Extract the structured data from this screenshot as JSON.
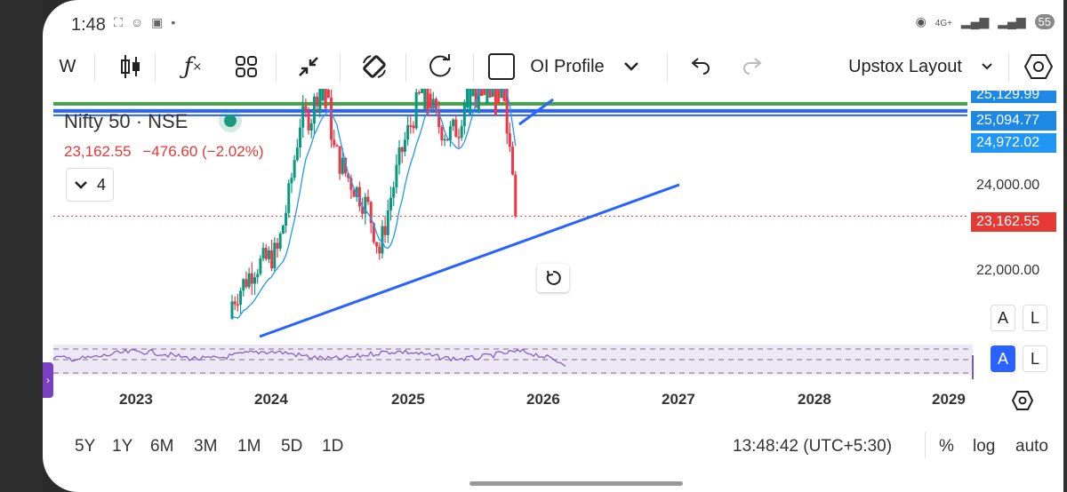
{
  "status_bar": {
    "time": "1:48",
    "network": "4G+",
    "battery": "55"
  },
  "toolbar": {
    "interval": "W",
    "oi_profile_label": "OI Profile",
    "layout_label": "Upstox Layout"
  },
  "legend": {
    "symbol": "Nifty 50 · NSE",
    "price": "23,162.55",
    "change": "−476.60 (−2.02%)",
    "indicator_count": "4"
  },
  "price_axis": {
    "labels": [
      "25,129.99",
      "25,094.77",
      "24,972.02",
      "24,000.00",
      "23,162.55",
      "22,000.00"
    ],
    "colors": {
      "green": "#43a047",
      "blue": "#1e88e5",
      "red": "#e53935"
    }
  },
  "time_axis": {
    "labels": [
      "2023",
      "2024",
      "2025",
      "2026",
      "2027",
      "2028",
      "2029"
    ]
  },
  "axis_buttons": {
    "auto_label": "A",
    "log_label": "L"
  },
  "bottom_bar": {
    "ranges": [
      "5Y",
      "1Y",
      "6M",
      "3M",
      "1M",
      "5D",
      "1D"
    ],
    "clock": "13:48:42 (UTC+5:30)",
    "percent_label": "%",
    "log_label": "log",
    "auto_label": "auto"
  },
  "chart_data": {
    "type": "candlestick",
    "title": "",
    "symbol": "Nifty 50 · NSE",
    "ylim": [
      21000,
      25200
    ],
    "x_ticks": [
      "2023",
      "2024",
      "2025",
      "2026",
      "2027",
      "2028",
      "2029"
    ],
    "last_price": 23162.55,
    "horizontal_levels": [
      25094.77,
      24972.02
    ],
    "series": [
      {
        "name": "",
        "x": [
          "2024-01",
          "2024-02",
          "2024-03",
          "2024-04",
          "2024-05",
          "2024-06",
          "2024-07",
          "2024-08",
          "2024-09",
          "2024-10",
          "2024-11",
          "2024-12",
          "2025-01",
          "2025-02",
          "2025-03",
          "2025-04",
          "2025-05",
          "2025-06",
          "2025-07",
          "2025-08",
          "2025-09",
          "2025-10",
          "2025-11",
          "2025-12",
          "2026-01",
          "2026-02"
        ],
        "close": [
          21700,
          22000,
          22300,
          22400,
          22550,
          23500,
          24800,
          24900,
          25700,
          24300,
          23900,
          23600,
          23300,
          22550,
          23500,
          24300,
          24900,
          25500,
          24800,
          24550,
          24700,
          25700,
          26100,
          25900,
          25300,
          23162
        ]
      }
    ]
  }
}
